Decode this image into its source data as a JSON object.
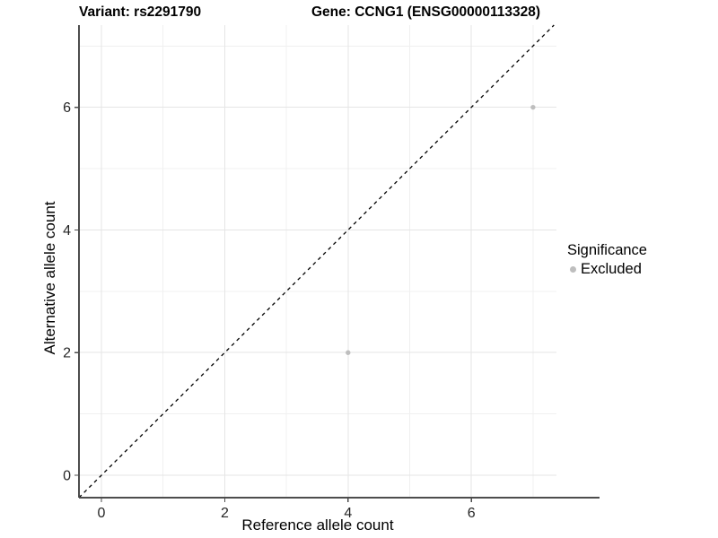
{
  "chart_data": {
    "type": "scatter",
    "titles": {
      "left": "Variant: rs2291790",
      "right": "Gene: CCNG1 (ENSG00000113328)"
    },
    "xlabel": "Reference allele count",
    "ylabel": "Alternative allele count",
    "xlim": [
      -0.364,
      7.38
    ],
    "ylim": [
      -0.365,
      7.34
    ],
    "x_ticks": [
      0,
      2,
      4,
      6
    ],
    "y_ticks": [
      0,
      2,
      4,
      6
    ],
    "x_minor_gridlines": [
      1,
      3,
      5,
      7
    ],
    "y_minor_gridlines": [
      1,
      3,
      5,
      7
    ],
    "grid": "major and minor, light gray on white panel",
    "reference_line": {
      "equation": "y = x",
      "style": "dashed",
      "color": "#000000"
    },
    "series": [
      {
        "name": "Excluded",
        "color": "#bebebe",
        "points": [
          {
            "x": 4,
            "y": 2
          },
          {
            "x": 7,
            "y": 6
          }
        ]
      }
    ],
    "legend": {
      "title": "Significance",
      "position": "right",
      "items": [
        {
          "label": "Excluded",
          "color": "#bebebe"
        }
      ]
    },
    "colors": {
      "major_gridline": "#e5e5e5",
      "minor_gridline": "#f0f0f0",
      "axis_line": "#4d4d4d",
      "tick_label": "#262626",
      "point": "#bebebe",
      "background": "#ffffff"
    }
  }
}
